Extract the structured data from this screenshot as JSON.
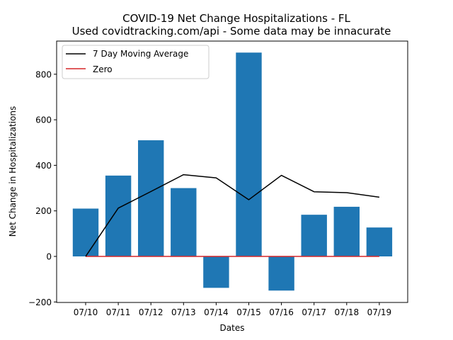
{
  "chart_data": {
    "type": "bar",
    "title": "COVID-19 Net Change Hospitalizations - FL",
    "subtitle": "Used covidtracking.com/api - Some data may be innacurate",
    "xlabel": "Dates",
    "ylabel": "Net Change in Hospitalizations",
    "categories": [
      "07/10",
      "07/11",
      "07/12",
      "07/13",
      "07/14",
      "07/15",
      "07/16",
      "07/17",
      "07/18",
      "07/19"
    ],
    "values": [
      210,
      355,
      510,
      300,
      -138,
      895,
      -150,
      183,
      218,
      127
    ],
    "ylim": [
      -200,
      930
    ],
    "yticks": [
      -200,
      0,
      200,
      400,
      600,
      800
    ],
    "grid": false,
    "legend_position": "top-left",
    "series": [
      {
        "type": "bar",
        "values": [
          210,
          355,
          510,
          300,
          -138,
          895,
          -150,
          183,
          218,
          127
        ],
        "color": "#1f77b4"
      },
      {
        "type": "line",
        "name": "7 Day Moving Average",
        "values": [
          0,
          212,
          285,
          359,
          345,
          249,
          356,
          284,
          280,
          260
        ],
        "color": "#000000"
      },
      {
        "type": "line",
        "name": "Zero",
        "values": [
          0,
          0,
          0,
          0,
          0,
          0,
          0,
          0,
          0,
          0
        ],
        "color": "#d62728"
      }
    ]
  }
}
